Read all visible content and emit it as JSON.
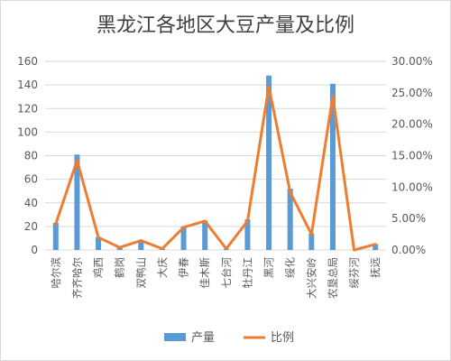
{
  "chart_data": {
    "type": "bar",
    "title": "黑龙江各地区大豆产量及比例",
    "categories": [
      "哈尔滨",
      "齐齐哈尔",
      "鸡西",
      "鹤岗",
      "双鸭山",
      "大庆",
      "伊春",
      "佳木斯",
      "七台河",
      "牡丹江",
      "黑河",
      "绥化",
      "大兴安岭",
      "农垦总局",
      "绥芬河",
      "抚远"
    ],
    "series": [
      {
        "name": "产量",
        "type": "bar",
        "axis": "left",
        "color": "#5b9bd5",
        "values": [
          23,
          81,
          11,
          2,
          8,
          1,
          20,
          25,
          1,
          26,
          148,
          52,
          14,
          141,
          0,
          5
        ]
      },
      {
        "name": "比例",
        "type": "line",
        "axis": "right",
        "color": "#ed7d31",
        "values": [
          0.0415,
          0.1425,
          0.02,
          0.004,
          0.015,
          0.002,
          0.036,
          0.046,
          0.002,
          0.046,
          0.26,
          0.092,
          0.025,
          0.245,
          0.0,
          0.009
        ]
      }
    ],
    "y_left": {
      "min": 0,
      "max": 160,
      "step": 20,
      "ticks": [
        "0",
        "20",
        "40",
        "60",
        "80",
        "100",
        "120",
        "140",
        "160"
      ]
    },
    "y_right": {
      "min": 0,
      "max": 0.3,
      "step": 0.05,
      "ticks": [
        "0.00%",
        "5.00%",
        "10.00%",
        "15.00%",
        "20.00%",
        "25.00%",
        "30.00%"
      ]
    },
    "grid": true,
    "legend_position": "bottom"
  },
  "legend": {
    "items": [
      {
        "label": "产量",
        "color": "#5b9bd5",
        "kind": "bar"
      },
      {
        "label": "比例",
        "color": "#ed7d31",
        "kind": "line"
      }
    ]
  }
}
